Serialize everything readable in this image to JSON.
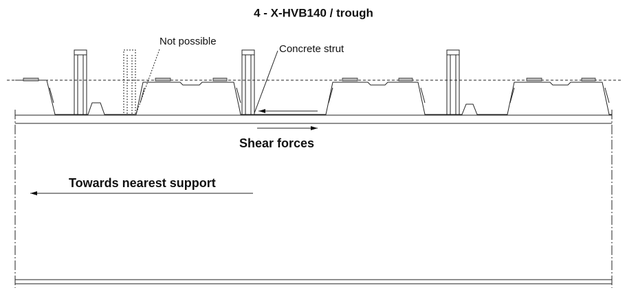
{
  "title": "4 - X-HVB140 / trough",
  "labels": {
    "not_possible": "Not possible",
    "concrete_strut": "Concrete strut",
    "shear_forces": "Shear forces",
    "towards_support": "Towards nearest support"
  }
}
